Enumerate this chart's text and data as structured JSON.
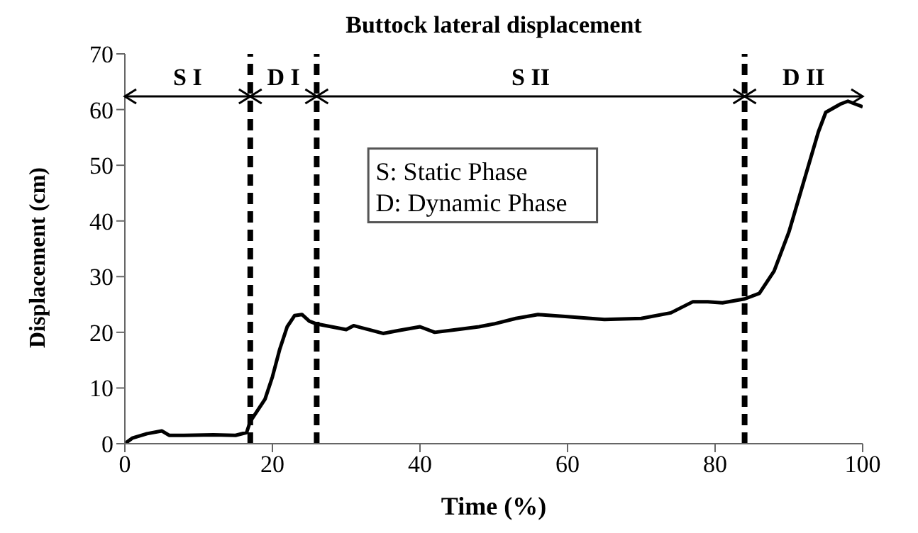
{
  "chart_data": {
    "type": "line",
    "title": "Buttock lateral displacement",
    "xlabel": "Time (%)",
    "ylabel": "Displacement (cm)",
    "x": [
      0,
      1,
      3,
      5,
      6,
      8,
      12,
      15,
      16.5,
      17,
      18,
      19,
      20,
      21,
      22,
      23,
      24,
      25,
      26,
      28,
      30,
      31,
      33,
      35,
      37,
      40,
      42,
      45,
      48,
      50,
      53,
      56,
      60,
      65,
      70,
      74,
      77,
      79,
      81,
      84,
      86,
      88,
      90,
      92,
      94,
      95,
      97,
      98,
      99,
      100
    ],
    "series": [
      {
        "color": "#000000",
        "values": [
          0,
          1,
          1.8,
          2.3,
          1.5,
          1.5,
          1.6,
          1.5,
          2,
          4,
          6,
          8,
          12,
          17,
          21,
          23,
          23.2,
          22,
          21.5,
          21,
          20.5,
          21.2,
          20.5,
          19.8,
          20.3,
          21,
          20,
          20.5,
          21,
          21.5,
          22.5,
          23.2,
          22.8,
          22.3,
          22.5,
          23.5,
          25.5,
          25.5,
          25.3,
          26,
          27,
          31,
          38,
          47,
          56,
          59.5,
          61,
          61.5,
          61,
          60.5
        ]
      }
    ],
    "xlim": [
      0,
      100
    ],
    "xticks": [
      0,
      20,
      40,
      60,
      80,
      100
    ],
    "ylim": [
      0,
      70
    ],
    "yticks": [
      0,
      10,
      20,
      30,
      40,
      50,
      60,
      70
    ],
    "marker": "none",
    "line_style": "solid",
    "ref_lines": [
      {
        "axis": "x",
        "value": 17,
        "color": "#000000",
        "line_style": "dashed"
      },
      {
        "axis": "x",
        "value": 26,
        "color": "#000000",
        "line_style": "dashed"
      },
      {
        "axis": "x",
        "value": 84,
        "color": "#000000",
        "line_style": "dashed"
      }
    ],
    "annotations": [
      "S I",
      "D I",
      "S II",
      "D II",
      "S: Static Phase",
      "D: Dynamic Phase"
    ]
  }
}
